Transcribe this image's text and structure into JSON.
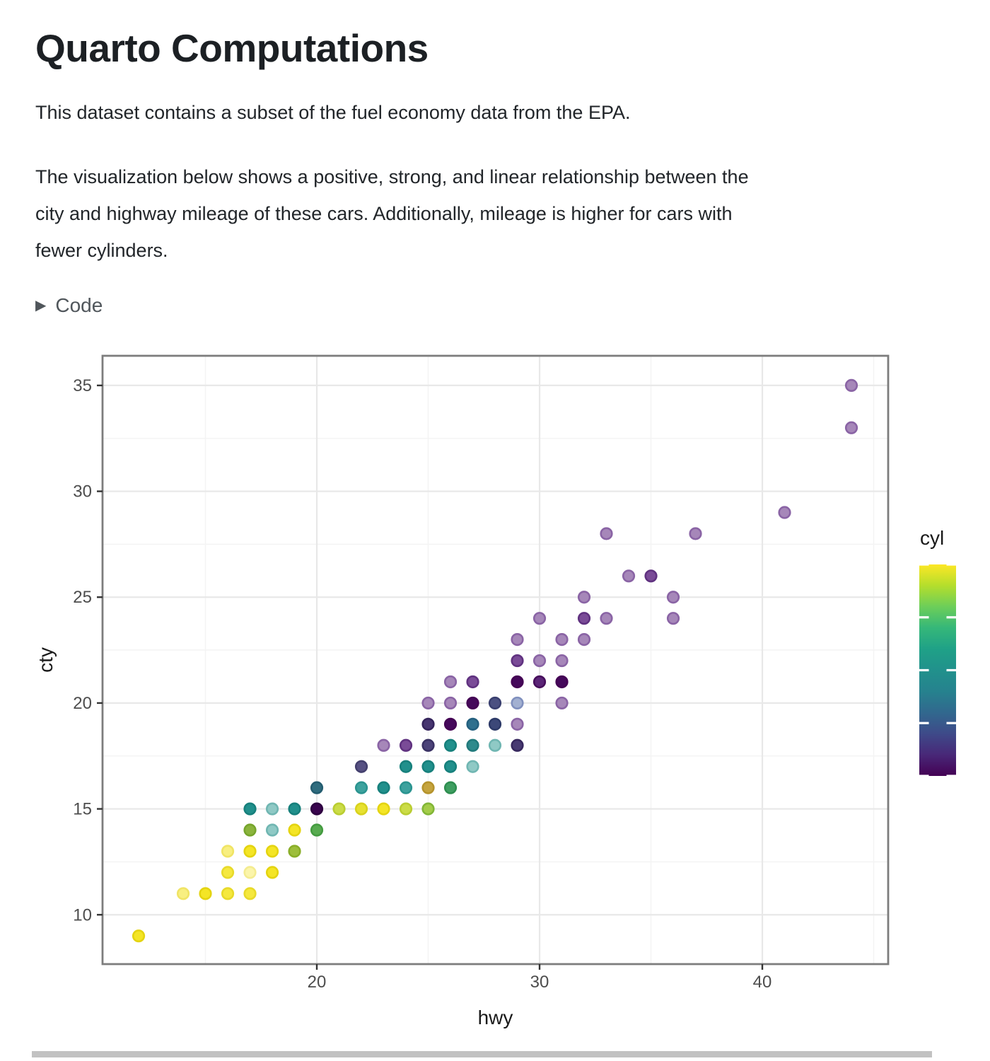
{
  "page": {
    "heading": "Quarto Computations",
    "paragraph1": "This dataset contains a subset of the fuel economy data from the EPA.",
    "paragraph2_lines": [
      "The visualization below shows a positive, strong, and linear relationship between the",
      "city and highway mileage of these cars. Additionally, mileage is higher for cars with",
      "fewer cylinders."
    ],
    "code_toggle_label": "Code",
    "code_toggle_icon": "▶"
  },
  "chart_data": {
    "type": "scatter",
    "title": "",
    "xlabel": "hwy",
    "ylabel": "cty",
    "legend_title": "cyl",
    "legend_position": "right",
    "grid": true,
    "x_major_ticks": [
      20,
      30,
      40
    ],
    "x_minor_ticks": [
      15,
      25,
      35,
      45
    ],
    "y_major_ticks": [
      10,
      15,
      20,
      25,
      30,
      35
    ],
    "y_minor_ticks": [
      12.5,
      17.5,
      22.5,
      27.5,
      32.5
    ],
    "xlim": [
      10.38,
      45.65
    ],
    "ylim": [
      7.67,
      36.4
    ],
    "color_scale": {
      "name": "viridis",
      "variable": "cyl",
      "domain": [
        4,
        8
      ],
      "bar_ticks": [
        4,
        5,
        6,
        7,
        8
      ],
      "gradient_top_to_bottom": [
        "#FDE725",
        "#B4DE2C",
        "#6CCE59",
        "#35B779",
        "#1FA187",
        "#21918C",
        "#26828E",
        "#31688E",
        "#3E4A89",
        "#482878",
        "#440154"
      ]
    },
    "palette": {
      "p1": [
        "#A687B9",
        "#8A64A5"
      ],
      "p2": [
        "#7A4B97",
        "#603280"
      ],
      "p3": [
        "#5B2577",
        "#470E5C"
      ],
      "p4": [
        "#45095B",
        "#440154"
      ],
      "p5": [
        "#3A054E",
        "#2E0140"
      ],
      "iA": [
        "#473570",
        "#35245C"
      ],
      "iB": [
        "#4C4379",
        "#3A3264"
      ],
      "iC": [
        "#483A72",
        "#37285E"
      ],
      "sl": [
        "#575183",
        "#44406E"
      ],
      "n1": [
        "#4B5081",
        "#3A4070"
      ],
      "n2": [
        "#3C4878",
        "#2D3A68"
      ],
      "bl": [
        "#A2B0D1",
        "#8090BE"
      ],
      "s1": [
        "#2F708E",
        "#24607F"
      ],
      "s2": [
        "#2F6C7E",
        "#245D70"
      ],
      "tf": [
        "#21908C",
        "#17807C"
      ],
      "t2": [
        "#2E8A8C",
        "#217A7C"
      ],
      "tm": [
        "#3DA29E",
        "#2B9490"
      ],
      "tl": [
        "#8FC9C5",
        "#70B6B2"
      ],
      "gd": [
        "#3F9E61",
        "#2E8E50"
      ],
      "gm": [
        "#58AB50",
        "#449B40"
      ],
      "od": [
        "#8BB43D",
        "#76A52C"
      ],
      "om": [
        "#9DBE3B",
        "#8AAE29"
      ],
      "ol": [
        "#A4CC49",
        "#82B637"
      ],
      "yg": [
        "#CBDC47",
        "#BACD32"
      ],
      "yb": [
        "#E7E130",
        "#D8D21D"
      ],
      "yf": [
        "#F4E525",
        "#E4D411"
      ],
      "ym": [
        "#F5E83E",
        "#E8DA2A"
      ],
      "yp": [
        "#F8EF80",
        "#F0E465"
      ],
      "y2": [
        "#FBF5AA",
        "#F4EC90"
      ],
      "mu": [
        "#C5A43E",
        "#B5932C"
      ]
    },
    "points": [
      [
        44,
        35,
        "p1"
      ],
      [
        44,
        33,
        "p1"
      ],
      [
        41,
        29,
        "p1"
      ],
      [
        37,
        28,
        "p1"
      ],
      [
        33,
        28,
        "p1"
      ],
      [
        35,
        26,
        "p2"
      ],
      [
        34,
        26,
        "p1"
      ],
      [
        36,
        25,
        "p1"
      ],
      [
        32,
        25,
        "p1"
      ],
      [
        36,
        24,
        "p1"
      ],
      [
        33,
        24,
        "p1"
      ],
      [
        32,
        24,
        "p2"
      ],
      [
        30,
        24,
        "p1"
      ],
      [
        32,
        23,
        "p1"
      ],
      [
        31,
        23,
        "p1"
      ],
      [
        29,
        23,
        "p1"
      ],
      [
        31,
        22,
        "p1"
      ],
      [
        30,
        22,
        "p1"
      ],
      [
        29,
        22,
        "p2"
      ],
      [
        31,
        21,
        "p4"
      ],
      [
        30,
        21,
        "p3"
      ],
      [
        29,
        21,
        "p4"
      ],
      [
        27,
        21,
        "p2"
      ],
      [
        26,
        21,
        "p1"
      ],
      [
        31,
        20,
        "p1"
      ],
      [
        29,
        20,
        "bl"
      ],
      [
        28,
        20,
        "n1"
      ],
      [
        27,
        20,
        "p4"
      ],
      [
        26,
        20,
        "p1"
      ],
      [
        25,
        20,
        "p1"
      ],
      [
        29,
        19,
        "p1"
      ],
      [
        28,
        19,
        "n2"
      ],
      [
        27,
        19,
        "s1"
      ],
      [
        26,
        19,
        "p4"
      ],
      [
        25,
        19,
        "iA"
      ],
      [
        29,
        18,
        "iC"
      ],
      [
        28,
        18,
        "tl"
      ],
      [
        27,
        18,
        "t2"
      ],
      [
        26,
        18,
        "tf"
      ],
      [
        25,
        18,
        "iB"
      ],
      [
        24,
        18,
        "p2"
      ],
      [
        23,
        18,
        "p1"
      ],
      [
        27,
        17,
        "tl"
      ],
      [
        26,
        17,
        "tf"
      ],
      [
        25,
        17,
        "tf"
      ],
      [
        24,
        17,
        "tf"
      ],
      [
        22,
        17,
        "sl"
      ],
      [
        26,
        16,
        "gd"
      ],
      [
        25,
        16,
        "mu"
      ],
      [
        24,
        16,
        "tm"
      ],
      [
        23,
        16,
        "tf"
      ],
      [
        22,
        16,
        "tm"
      ],
      [
        20,
        16,
        "s2"
      ],
      [
        25,
        15,
        "ol"
      ],
      [
        24,
        15,
        "yg"
      ],
      [
        23,
        15,
        "yf"
      ],
      [
        22,
        15,
        "yb"
      ],
      [
        21,
        15,
        "yg"
      ],
      [
        20,
        15,
        "p5"
      ],
      [
        19,
        15,
        "tf"
      ],
      [
        18,
        15,
        "tl"
      ],
      [
        17,
        15,
        "tf"
      ],
      [
        20,
        14,
        "gm"
      ],
      [
        19,
        14,
        "yf"
      ],
      [
        18,
        14,
        "tl"
      ],
      [
        17,
        14,
        "od"
      ],
      [
        19,
        13,
        "om"
      ],
      [
        18,
        13,
        "yf"
      ],
      [
        17,
        13,
        "yf"
      ],
      [
        16,
        13,
        "yp"
      ],
      [
        18,
        12,
        "yf"
      ],
      [
        17,
        12,
        "y2"
      ],
      [
        16,
        12,
        "ym"
      ],
      [
        17,
        11,
        "ym"
      ],
      [
        16,
        11,
        "ym"
      ],
      [
        15,
        11,
        "yf"
      ],
      [
        14,
        11,
        "yp"
      ],
      [
        12,
        9,
        "yf"
      ]
    ]
  }
}
